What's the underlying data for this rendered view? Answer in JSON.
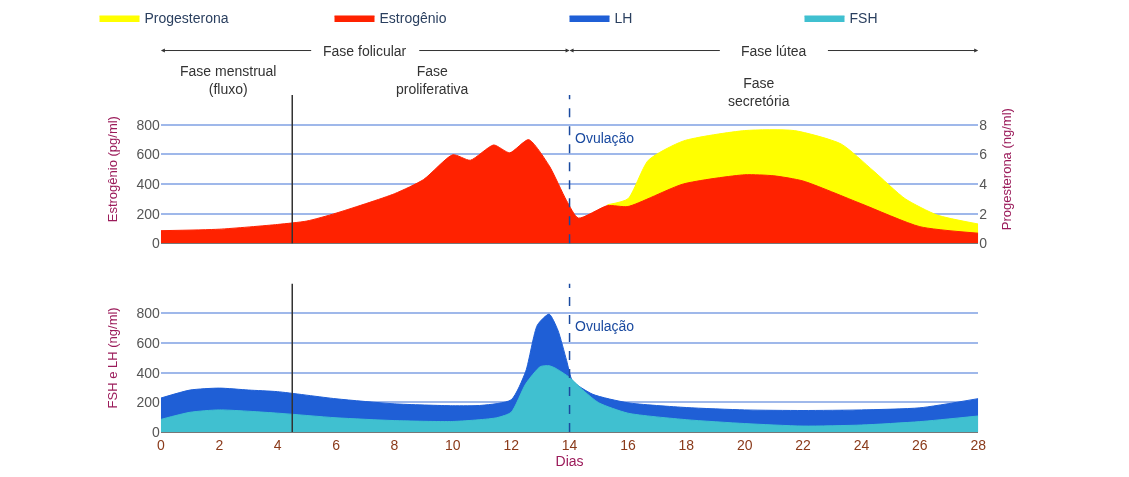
{
  "chart_data": [
    {
      "type": "area",
      "ylabel": "Estrogênio (pg/ml)",
      "y2label": "Progesterona (ng/ml)",
      "annotations": [
        "Fase folicular",
        "Fase lútea",
        "Fase menstrual\n(fluxo)",
        "Fase\nproliferativa",
        "Fase\nsecretória"
      ],
      "series": [
        {
          "name": "Progesterona",
          "color": "#ffff00",
          "axis": "y2",
          "x": [
            15.3,
            16,
            16.7,
            17.9,
            20,
            21.7,
            23.3,
            24.4,
            25.5,
            26.6,
            28
          ],
          "values": [
            2.6,
            3.0,
            5.6,
            6.9,
            7.6,
            7.6,
            6.7,
            4.9,
            3.0,
            1.9,
            1.3
          ]
        },
        {
          "name": "Estrogênio",
          "color": "#ff2200",
          "x": [
            0,
            2,
            4,
            5,
            6,
            8,
            9,
            10,
            10.6,
            11.4,
            11.95,
            12.6,
            13.3,
            13.9,
            14.3,
            15.3,
            16,
            17.9,
            20,
            21,
            22,
            24,
            26,
            28
          ],
          "values": [
            85,
            95,
            127,
            150,
            203,
            334,
            430,
            597,
            560,
            663,
            610,
            699,
            524,
            287,
            170,
            254,
            248,
            400,
            462,
            455,
            420,
            266,
            112,
            68
          ]
        }
      ],
      "xlim": [
        0,
        28
      ],
      "xticks": [
        0,
        2,
        4,
        6,
        8,
        10,
        12,
        14,
        16,
        18,
        20,
        22,
        24,
        26,
        28
      ],
      "ylim": [
        0,
        1000
      ],
      "yticks": [
        0,
        200,
        400,
        600,
        800
      ],
      "y2lim": [
        0,
        10
      ],
      "y2ticks": [
        0,
        2,
        4,
        6,
        8
      ],
      "ref_lines": [
        {
          "axis": "x",
          "value": 4.5,
          "color": "#333333",
          "line_style": "solid"
        },
        {
          "axis": "x",
          "value": 14,
          "label": "Ovulação",
          "color": "#1a4aa0",
          "line_style": "dashed"
        }
      ],
      "tick_labels": "y",
      "grid": true,
      "legend": "top"
    },
    {
      "type": "area",
      "xlabel": "Dias",
      "ylabel": "FSH e LH (ng/ml)",
      "series": [
        {
          "name": "LH",
          "color": "#1f5fd6",
          "x": [
            0,
            1,
            2,
            3,
            4,
            6,
            8,
            10,
            11,
            12,
            12.5,
            12.9,
            13.3,
            13.6,
            13.9,
            14.1,
            14.8,
            16,
            18,
            20,
            22,
            24,
            26,
            28
          ],
          "values": [
            229,
            283,
            296,
            283,
            272,
            224,
            190,
            177,
            180,
            217,
            410,
            722,
            795,
            687,
            482,
            345,
            254,
            197,
            165,
            149,
            145,
            149,
            163,
            225
          ]
        },
        {
          "name": "FSH",
          "color": "#40c0d0",
          "x": [
            0,
            1,
            2,
            4,
            6,
            8,
            10,
            11.5,
            12,
            12.5,
            13,
            13.3,
            13.5,
            14,
            14.5,
            15,
            16,
            18,
            20,
            22,
            24,
            26,
            28
          ],
          "values": [
            85,
            133,
            149,
            127,
            96,
            77,
            71,
            96,
            133,
            325,
            441,
            447,
            432,
            368,
            275,
            197,
            127,
            83,
            57,
            40,
            47,
            70,
            108
          ]
        }
      ],
      "xlim": [
        0,
        28
      ],
      "xticks": [
        0,
        2,
        4,
        6,
        8,
        10,
        12,
        14,
        16,
        18,
        20,
        22,
        24,
        26,
        28
      ],
      "ylim": [
        0,
        1000
      ],
      "yticks": [
        0,
        200,
        400,
        600,
        800
      ],
      "ref_lines": [
        {
          "axis": "x",
          "value": 4.5,
          "color": "#333333",
          "line_style": "solid"
        },
        {
          "axis": "x",
          "value": 14,
          "label": "Ovulação",
          "color": "#1a4aa0",
          "line_style": "dashed"
        }
      ],
      "grid": true,
      "legend": "top"
    }
  ]
}
